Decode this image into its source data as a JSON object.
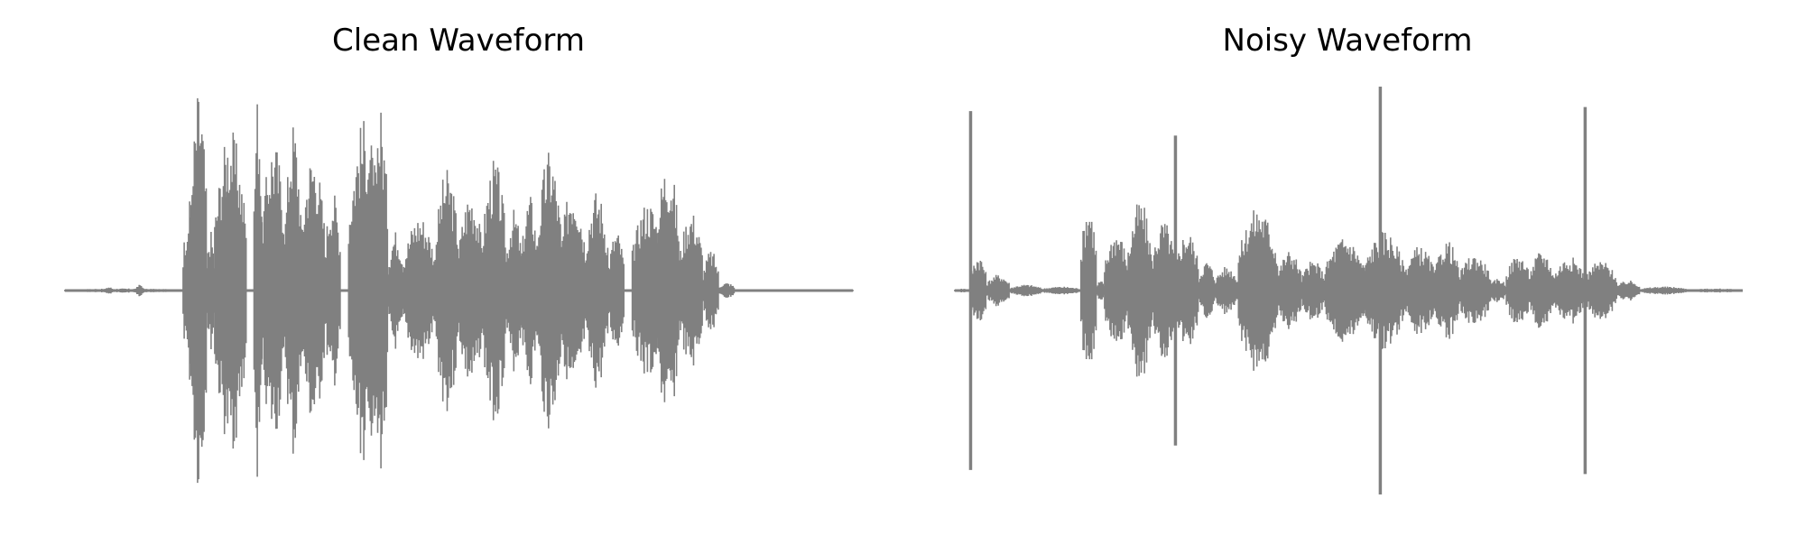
{
  "figure": {
    "colors": {
      "waveform": "#808080",
      "background": "#ffffff"
    }
  },
  "chart_data": [
    {
      "type": "line",
      "title": "Clean Waveform",
      "axes_visible": false,
      "grid": false,
      "ylim": [
        -1.0,
        1.0
      ],
      "xlim": [
        0,
        1
      ],
      "segments": [
        {
          "x": [
            0.0,
            0.15
          ],
          "amp": 0.01
        },
        {
          "x": [
            0.05,
            0.06
          ],
          "amp": 0.02
        },
        {
          "x": [
            0.09,
            0.1
          ],
          "amp": 0.03
        },
        {
          "x": [
            0.15,
            0.17
          ],
          "amp": 0.45
        },
        {
          "x": [
            0.16,
            0.18
          ],
          "amp": 1.0
        },
        {
          "x": [
            0.18,
            0.19
          ],
          "amp": 0.3
        },
        {
          "x": [
            0.19,
            0.23
          ],
          "amp": 0.8
        },
        {
          "x": [
            0.2,
            0.22
          ],
          "amp": 0.6
        },
        {
          "x": [
            0.24,
            0.25
          ],
          "amp": 1.0
        },
        {
          "x": [
            0.25,
            0.28
          ],
          "amp": 0.75
        },
        {
          "x": [
            0.28,
            0.3
          ],
          "amp": 0.85
        },
        {
          "x": [
            0.3,
            0.33
          ],
          "amp": 0.7
        },
        {
          "x": [
            0.33,
            0.35
          ],
          "amp": 0.5
        },
        {
          "x": [
            0.36,
            0.4
          ],
          "amp": 0.85
        },
        {
          "x": [
            0.39,
            0.41
          ],
          "amp": 0.92
        },
        {
          "x": [
            0.41,
            0.43
          ],
          "amp": 0.3
        },
        {
          "x": [
            0.43,
            0.47
          ],
          "amp": 0.38
        },
        {
          "x": [
            0.47,
            0.5
          ],
          "amp": 0.6
        },
        {
          "x": [
            0.5,
            0.53
          ],
          "amp": 0.5
        },
        {
          "x": [
            0.53,
            0.56
          ],
          "amp": 0.65
        },
        {
          "x": [
            0.56,
            0.58
          ],
          "amp": 0.4
        },
        {
          "x": [
            0.58,
            0.6
          ],
          "amp": 0.48
        },
        {
          "x": [
            0.6,
            0.63
          ],
          "amp": 0.7
        },
        {
          "x": [
            0.63,
            0.66
          ],
          "amp": 0.55
        },
        {
          "x": [
            0.66,
            0.69
          ],
          "amp": 0.5
        },
        {
          "x": [
            0.69,
            0.71
          ],
          "amp": 0.3
        },
        {
          "x": [
            0.72,
            0.76
          ],
          "amp": 0.45
        },
        {
          "x": [
            0.75,
            0.78
          ],
          "amp": 0.66
        },
        {
          "x": [
            0.78,
            0.81
          ],
          "amp": 0.4
        },
        {
          "x": [
            0.81,
            0.83
          ],
          "amp": 0.2
        },
        {
          "x": [
            0.83,
            0.85
          ],
          "amp": 0.04
        },
        {
          "x": [
            0.85,
            1.0
          ],
          "amp": 0.005
        }
      ],
      "spikes": []
    },
    {
      "type": "line",
      "title": "Noisy Waveform",
      "axes_visible": false,
      "grid": false,
      "ylim": [
        -1.0,
        1.0
      ],
      "xlim": [
        0,
        1
      ],
      "segments": [
        {
          "x": [
            0.0,
            0.02
          ],
          "amp": 0.01
        },
        {
          "x": [
            0.02,
            0.04
          ],
          "amp": 0.18
        },
        {
          "x": [
            0.04,
            0.07
          ],
          "amp": 0.08
        },
        {
          "x": [
            0.07,
            0.11
          ],
          "amp": 0.03
        },
        {
          "x": [
            0.11,
            0.16
          ],
          "amp": 0.02
        },
        {
          "x": [
            0.16,
            0.18
          ],
          "amp": 0.44
        },
        {
          "x": [
            0.18,
            0.19
          ],
          "amp": 0.05
        },
        {
          "x": [
            0.19,
            0.22
          ],
          "amp": 0.3
        },
        {
          "x": [
            0.22,
            0.25
          ],
          "amp": 0.45
        },
        {
          "x": [
            0.25,
            0.28
          ],
          "amp": 0.35
        },
        {
          "x": [
            0.28,
            0.31
          ],
          "amp": 0.3
        },
        {
          "x": [
            0.31,
            0.33
          ],
          "amp": 0.15
        },
        {
          "x": [
            0.33,
            0.36
          ],
          "amp": 0.12
        },
        {
          "x": [
            0.36,
            0.41
          ],
          "amp": 0.42
        },
        {
          "x": [
            0.41,
            0.44
          ],
          "amp": 0.2
        },
        {
          "x": [
            0.44,
            0.47
          ],
          "amp": 0.15
        },
        {
          "x": [
            0.47,
            0.52
          ],
          "amp": 0.27
        },
        {
          "x": [
            0.52,
            0.57
          ],
          "amp": 0.3
        },
        {
          "x": [
            0.57,
            0.61
          ],
          "amp": 0.22
        },
        {
          "x": [
            0.61,
            0.64
          ],
          "amp": 0.25
        },
        {
          "x": [
            0.64,
            0.68
          ],
          "amp": 0.18
        },
        {
          "x": [
            0.68,
            0.7
          ],
          "amp": 0.06
        },
        {
          "x": [
            0.7,
            0.73
          ],
          "amp": 0.18
        },
        {
          "x": [
            0.73,
            0.76
          ],
          "amp": 0.2
        },
        {
          "x": [
            0.76,
            0.8
          ],
          "amp": 0.17
        },
        {
          "x": [
            0.8,
            0.84
          ],
          "amp": 0.15
        },
        {
          "x": [
            0.84,
            0.87
          ],
          "amp": 0.05
        },
        {
          "x": [
            0.87,
            0.93
          ],
          "amp": 0.02
        },
        {
          "x": [
            0.93,
            1.0
          ],
          "amp": 0.01
        }
      ],
      "spikes": [
        {
          "x": 0.02,
          "low": -0.88,
          "high": 0.88
        },
        {
          "x": 0.28,
          "low": -0.76,
          "high": 0.76
        },
        {
          "x": 0.54,
          "low": -1.0,
          "high": 1.0
        },
        {
          "x": 0.8,
          "low": -0.9,
          "high": 0.9
        }
      ]
    }
  ]
}
